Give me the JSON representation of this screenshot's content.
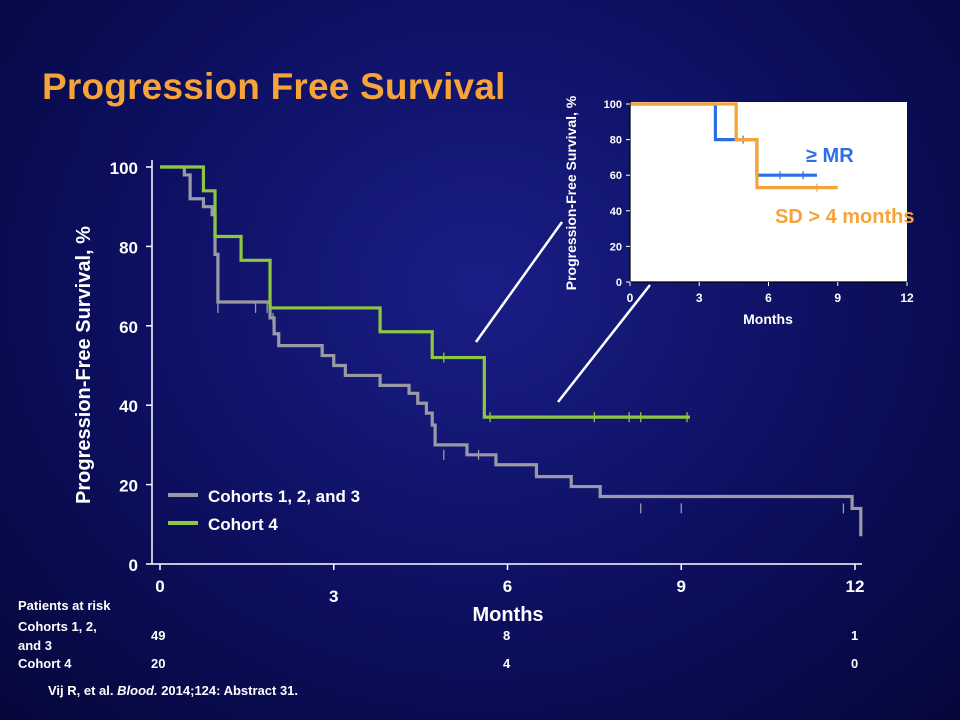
{
  "slide": {
    "title": "Progression Free Survival",
    "citation": {
      "authors": "Vij R, et al.",
      "journal": "Blood.",
      "rest": "2014;124: Abstract 31."
    }
  },
  "risk_table": {
    "header": "Patients at risk",
    "rows": [
      {
        "label_line1": "Cohorts 1, 2,",
        "label_line2": "and 3",
        "values": [
          "49",
          "8",
          "1"
        ]
      },
      {
        "label_line1": "Cohort 4",
        "label_line2": "",
        "values": [
          "20",
          "4",
          "0"
        ]
      }
    ]
  },
  "chart_data": [
    {
      "type": "line",
      "step": true,
      "title": "",
      "xlabel": "Months",
      "ylabel": "Progression-Free Survival, %",
      "xlim": [
        0,
        12
      ],
      "ylim": [
        0,
        100
      ],
      "xticks": [
        0,
        3,
        6,
        9,
        12
      ],
      "yticks": [
        0,
        20,
        40,
        60,
        80,
        100
      ],
      "grid": false,
      "legend": "bottom-left",
      "series": [
        {
          "name": "Cohorts 1, 2, and 3",
          "color": "#9a9aa6",
          "x": [
            0,
            0.42,
            0.52,
            0.75,
            0.9,
            0.95,
            1.0,
            1.9,
            1.97,
            2.05,
            2.8,
            3.0,
            3.2,
            3.8,
            4.3,
            4.45,
            4.6,
            4.7,
            4.75,
            5.3,
            5.8,
            6.5,
            7.1,
            7.6,
            11.95,
            12.1
          ],
          "y": [
            100,
            98,
            92,
            90,
            88,
            78,
            66,
            62,
            58,
            55,
            52.5,
            50,
            47.5,
            45,
            43,
            40.5,
            38,
            35,
            30,
            27.5,
            25,
            22,
            19.5,
            17,
            14,
            7
          ],
          "censor_x": [
            1.0,
            1.65,
            1.85,
            1.95,
            4.9,
            5.5,
            8.3,
            9.0,
            11.8
          ],
          "censor_y": [
            64.5,
            64.5,
            64.5,
            62,
            27.5,
            27.5,
            14,
            14,
            14
          ]
        },
        {
          "name": "Cohort 4",
          "color": "#8dc641",
          "x": [
            0,
            0.75,
            0.95,
            1.4,
            1.9,
            3.8,
            4.7,
            5.6,
            9.15
          ],
          "y": [
            100,
            94,
            82.5,
            76.5,
            64.5,
            58.5,
            52,
            37,
            37
          ],
          "censor_x": [
            4.9,
            5.7,
            7.5,
            8.1,
            8.3,
            9.1
          ],
          "censor_y": [
            52,
            37,
            37,
            37,
            37,
            37
          ]
        }
      ]
    },
    {
      "type": "line",
      "step": true,
      "title": "",
      "xlabel": "Months",
      "ylabel": "Progression-Free Survival, %",
      "xlim": [
        0,
        12
      ],
      "ylim": [
        0,
        100
      ],
      "xticks": [
        0,
        3,
        6,
        9,
        12
      ],
      "yticks": [
        0,
        20,
        40,
        60,
        80,
        100
      ],
      "grid": false,
      "legend": "right",
      "series": [
        {
          "name": "≥ MR",
          "color": "#2a6fe6",
          "x": [
            0,
            3.7,
            4.9,
            5.5,
            8.1
          ],
          "y": [
            100,
            80,
            80,
            60,
            60
          ],
          "censor_x": [
            4.9,
            6.5,
            7.5
          ],
          "censor_y": [
            80,
            60,
            60
          ]
        },
        {
          "name": "SD > 4 months",
          "color": "#f6a33a",
          "x": [
            0,
            4.6,
            5.5,
            9.0
          ],
          "y": [
            100,
            80,
            53,
            53
          ],
          "censor_x": [
            8.1
          ],
          "censor_y": [
            53
          ]
        }
      ]
    }
  ]
}
